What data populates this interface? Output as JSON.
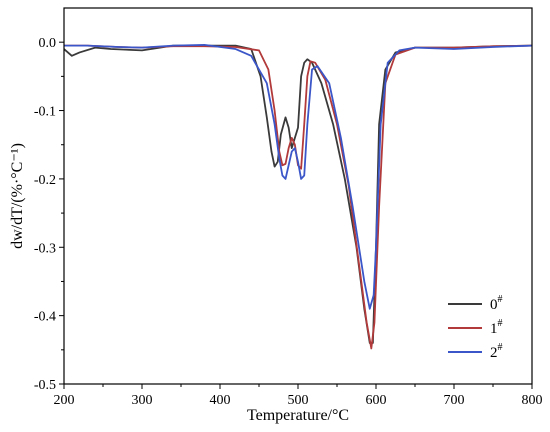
{
  "chart_data": {
    "type": "line",
    "title": "",
    "xlabel": "Temperature/°C",
    "ylabel": "dw/dT/(%·°C⁻¹)",
    "xlim": [
      200,
      800
    ],
    "ylim": [
      -0.5,
      0.05
    ],
    "xticks": [
      200,
      300,
      400,
      500,
      600,
      700,
      800
    ],
    "yticks": [
      0.0,
      -0.1,
      -0.2,
      -0.3,
      -0.4,
      -0.5
    ],
    "xtick_labels": [
      "200",
      "300",
      "400",
      "500",
      "600",
      "700",
      "800"
    ],
    "ytick_labels": [
      "0.0",
      "-0.1",
      "-0.2",
      "-0.3",
      "-0.4",
      "-0.5"
    ],
    "grid": false,
    "legend": "bottom-right",
    "series": [
      {
        "name": "0#",
        "color": "#3a3a3a",
        "x": [
          200,
          210,
          220,
          240,
          260,
          300,
          340,
          380,
          420,
          440,
          452,
          460,
          466,
          470,
          474,
          478,
          484,
          488,
          492,
          496,
          500,
          504,
          508,
          512,
          518,
          530,
          545,
          560,
          575,
          585,
          592,
          596,
          600,
          604,
          612,
          625,
          650,
          700,
          750,
          800
        ],
        "y": [
          -0.01,
          -0.02,
          -0.015,
          -0.008,
          -0.01,
          -0.012,
          -0.005,
          -0.005,
          -0.005,
          -0.01,
          -0.05,
          -0.11,
          -0.16,
          -0.182,
          -0.175,
          -0.135,
          -0.11,
          -0.125,
          -0.155,
          -0.14,
          -0.125,
          -0.05,
          -0.03,
          -0.025,
          -0.03,
          -0.06,
          -0.12,
          -0.2,
          -0.3,
          -0.39,
          -0.44,
          -0.44,
          -0.3,
          -0.12,
          -0.04,
          -0.015,
          -0.008,
          -0.008,
          -0.006,
          -0.005
        ]
      },
      {
        "name": "1#",
        "color": "#b23a3a",
        "x": [
          200,
          230,
          270,
          300,
          340,
          380,
          420,
          450,
          462,
          470,
          476,
          480,
          484,
          488,
          492,
          496,
          500,
          504,
          508,
          512,
          516,
          522,
          535,
          550,
          565,
          580,
          588,
          594,
          598,
          604,
          612,
          625,
          650,
          700,
          750,
          800
        ],
        "y": [
          -0.005,
          -0.005,
          -0.007,
          -0.008,
          -0.006,
          -0.006,
          -0.007,
          -0.012,
          -0.04,
          -0.1,
          -0.16,
          -0.18,
          -0.178,
          -0.155,
          -0.14,
          -0.15,
          -0.18,
          -0.185,
          -0.12,
          -0.05,
          -0.028,
          -0.03,
          -0.055,
          -0.12,
          -0.21,
          -0.34,
          -0.41,
          -0.448,
          -0.41,
          -0.24,
          -0.06,
          -0.018,
          -0.008,
          -0.008,
          -0.006,
          -0.005
        ]
      },
      {
        "name": "2#",
        "color": "#3b56c8",
        "x": [
          200,
          230,
          270,
          300,
          340,
          380,
          420,
          440,
          460,
          470,
          476,
          480,
          484,
          488,
          492,
          496,
          500,
          504,
          508,
          512,
          518,
          525,
          540,
          555,
          570,
          585,
          592,
          597,
          600,
          606,
          615,
          630,
          650,
          700,
          750,
          800
        ],
        "y": [
          -0.005,
          -0.005,
          -0.007,
          -0.008,
          -0.005,
          -0.004,
          -0.01,
          -0.02,
          -0.06,
          -0.12,
          -0.17,
          -0.195,
          -0.2,
          -0.18,
          -0.16,
          -0.155,
          -0.175,
          -0.2,
          -0.195,
          -0.12,
          -0.04,
          -0.035,
          -0.06,
          -0.14,
          -0.24,
          -0.35,
          -0.39,
          -0.37,
          -0.3,
          -0.12,
          -0.03,
          -0.012,
          -0.008,
          -0.01,
          -0.007,
          -0.005
        ]
      }
    ]
  }
}
